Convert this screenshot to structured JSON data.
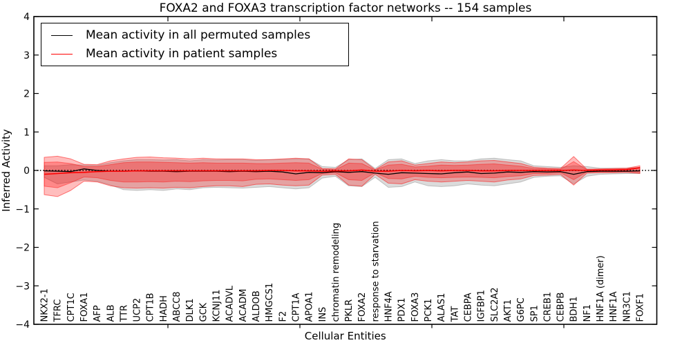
{
  "title": "FOXA2 and FOXA3 transcription factor networks -- 154 samples",
  "legend": {
    "entries": [
      {
        "label": "Mean activity in all permuted samples",
        "color": "#000000"
      },
      {
        "label": "Mean activity in patient samples",
        "color": "#ff0000"
      }
    ],
    "position": "upper left"
  },
  "chart_data": {
    "type": "line",
    "title": "FOXA2 and FOXA3 transcription factor networks -- 154 samples",
    "xlabel": "Cellular Entities",
    "ylabel": "Inferred Activity",
    "ylim": [
      -4,
      4
    ],
    "grid": false,
    "yticks": [
      {
        "value": 4,
        "label": "4"
      },
      {
        "value": 3,
        "label": "3"
      },
      {
        "value": 2,
        "label": "2"
      },
      {
        "value": 1,
        "label": "1"
      },
      {
        "value": 0,
        "label": "0"
      },
      {
        "value": -1,
        "label": "−1"
      },
      {
        "value": -2,
        "label": "−2"
      },
      {
        "value": -3,
        "label": "−3"
      },
      {
        "value": -4,
        "label": "−4"
      }
    ],
    "categories": [
      "NKX2-1",
      "TFRC",
      "CPT1C",
      "FOXA1",
      "AFP",
      "ALB",
      "TTR",
      "UCP2",
      "CPT1B",
      "HADH",
      "ABCC8",
      "DLK1",
      "GCK",
      "KCNJ11",
      "ACADVL",
      "ACADM",
      "ALDOB",
      "HMGCS1",
      "F2",
      "CPT1A",
      "APOA1",
      "INS",
      "chromatin remodeling",
      "PKLR",
      "FOXA2",
      "response to starvation",
      "HNF4A",
      "PDX1",
      "FOXA3",
      "PCK1",
      "ALAS1",
      "TAT",
      "CEBPA",
      "IGFBP1",
      "SLC2A2",
      "AKT1",
      "G6PC",
      "SP1",
      "CREB1",
      "CEBPB",
      "BDH1",
      "NF1",
      "HNF1A (dimer)",
      "HNF1A",
      "NR3C1",
      "FOXF1"
    ],
    "baseline": {
      "value": 0,
      "color": "#000000",
      "style": "dotted"
    },
    "series": [
      {
        "name": "Mean activity in all permuted samples",
        "color": "#000000",
        "style": "solid",
        "width": 1.3,
        "values": [
          -0.01,
          -0.02,
          -0.03,
          0.04,
          0.0,
          -0.02,
          -0.02,
          -0.01,
          -0.02,
          -0.02,
          -0.03,
          -0.02,
          -0.02,
          -0.02,
          -0.03,
          -0.02,
          -0.03,
          -0.02,
          -0.04,
          -0.09,
          -0.05,
          -0.06,
          -0.03,
          -0.05,
          -0.03,
          -0.07,
          -0.1,
          -0.06,
          -0.07,
          -0.08,
          -0.09,
          -0.06,
          -0.04,
          -0.08,
          -0.07,
          -0.04,
          -0.05,
          -0.03,
          -0.04,
          -0.03,
          -0.1,
          -0.03,
          -0.02,
          -0.02,
          -0.02,
          -0.01
        ]
      },
      {
        "name": "Mean activity in patient samples",
        "color": "#ff0000",
        "style": "solid",
        "width": 1.6,
        "values": [
          -0.1,
          -0.08,
          -0.06,
          -0.05,
          -0.03,
          -0.02,
          -0.02,
          -0.01,
          -0.01,
          -0.01,
          -0.01,
          -0.01,
          -0.01,
          -0.01,
          -0.01,
          -0.01,
          -0.01,
          0.0,
          0.0,
          -0.01,
          -0.01,
          -0.02,
          -0.01,
          -0.01,
          0.01,
          -0.02,
          -0.02,
          0.0,
          -0.01,
          0.0,
          -0.01,
          0.0,
          0.0,
          -0.01,
          -0.01,
          0.0,
          0.0,
          0.0,
          0.0,
          0.0,
          0.01,
          0.0,
          0.01,
          0.01,
          0.02,
          0.07
        ]
      }
    ],
    "bands": [
      {
        "name": "permuted-samples-range",
        "color": "#909090",
        "opacity": 0.32,
        "edge_opacity": 0.5,
        "upper": [
          0.12,
          0.12,
          0.15,
          0.14,
          0.13,
          0.2,
          0.25,
          0.28,
          0.28,
          0.27,
          0.28,
          0.25,
          0.28,
          0.27,
          0.28,
          0.28,
          0.26,
          0.28,
          0.28,
          0.3,
          0.3,
          0.1,
          0.08,
          0.28,
          0.3,
          0.05,
          0.28,
          0.3,
          0.18,
          0.25,
          0.28,
          0.25,
          0.25,
          0.3,
          0.32,
          0.28,
          0.25,
          0.12,
          0.1,
          0.08,
          0.12,
          0.1,
          0.06,
          0.06,
          0.06,
          0.08
        ],
        "lower": [
          -0.18,
          -0.35,
          -0.3,
          -0.25,
          -0.28,
          -0.38,
          -0.5,
          -0.52,
          -0.5,
          -0.52,
          -0.48,
          -0.5,
          -0.45,
          -0.44,
          -0.45,
          -0.46,
          -0.44,
          -0.42,
          -0.45,
          -0.48,
          -0.45,
          -0.2,
          -0.15,
          -0.4,
          -0.42,
          -0.18,
          -0.44,
          -0.42,
          -0.3,
          -0.4,
          -0.42,
          -0.4,
          -0.35,
          -0.38,
          -0.4,
          -0.35,
          -0.3,
          -0.18,
          -0.15,
          -0.14,
          -0.35,
          -0.15,
          -0.1,
          -0.09,
          -0.08,
          -0.08
        ]
      },
      {
        "name": "patient-samples-range-outer",
        "color": "#ff0000",
        "opacity": 0.26,
        "edge_opacity": 0.5,
        "upper": [
          0.34,
          0.37,
          0.3,
          0.16,
          0.15,
          0.25,
          0.3,
          0.34,
          0.35,
          0.33,
          0.32,
          0.3,
          0.32,
          0.3,
          0.3,
          0.3,
          0.28,
          0.28,
          0.3,
          0.32,
          0.3,
          0.05,
          0.04,
          0.3,
          0.28,
          0.02,
          0.22,
          0.25,
          0.14,
          0.18,
          0.22,
          0.2,
          0.22,
          0.25,
          0.26,
          0.22,
          0.18,
          0.08,
          0.06,
          0.05,
          0.36,
          0.03,
          0.04,
          0.05,
          0.06,
          0.12
        ],
        "lower": [
          -0.63,
          -0.68,
          -0.52,
          -0.28,
          -0.3,
          -0.4,
          -0.45,
          -0.46,
          -0.45,
          -0.46,
          -0.44,
          -0.45,
          -0.42,
          -0.4,
          -0.4,
          -0.42,
          -0.36,
          -0.35,
          -0.38,
          -0.4,
          -0.38,
          -0.12,
          -0.1,
          -0.38,
          -0.41,
          -0.1,
          -0.33,
          -0.35,
          -0.24,
          -0.28,
          -0.3,
          -0.28,
          -0.26,
          -0.28,
          -0.3,
          -0.25,
          -0.22,
          -0.13,
          -0.12,
          -0.1,
          -0.38,
          -0.07,
          -0.06,
          -0.06,
          -0.05,
          -0.08
        ]
      },
      {
        "name": "patient-samples-range-inner",
        "color": "#ff0000",
        "opacity": 0.28,
        "edge_opacity": 0.4,
        "upper": [
          0.21,
          0.22,
          0.18,
          0.1,
          0.1,
          0.15,
          0.2,
          0.22,
          0.22,
          0.21,
          0.2,
          0.19,
          0.2,
          0.19,
          0.19,
          0.19,
          0.18,
          0.18,
          0.19,
          0.2,
          0.19,
          0.03,
          0.02,
          0.19,
          0.18,
          0.01,
          0.14,
          0.16,
          0.09,
          0.11,
          0.14,
          0.13,
          0.14,
          0.16,
          0.17,
          0.14,
          0.11,
          0.05,
          0.04,
          0.03,
          0.23,
          0.02,
          0.02,
          0.03,
          0.04,
          0.08
        ],
        "lower": [
          -0.41,
          -0.45,
          -0.32,
          -0.17,
          -0.19,
          -0.26,
          -0.3,
          -0.3,
          -0.29,
          -0.3,
          -0.28,
          -0.29,
          -0.27,
          -0.26,
          -0.26,
          -0.27,
          -0.23,
          -0.22,
          -0.24,
          -0.26,
          -0.24,
          -0.08,
          -0.06,
          -0.24,
          -0.26,
          -0.06,
          -0.21,
          -0.22,
          -0.15,
          -0.18,
          -0.19,
          -0.18,
          -0.17,
          -0.18,
          -0.19,
          -0.16,
          -0.14,
          -0.08,
          -0.08,
          -0.06,
          -0.24,
          -0.04,
          -0.04,
          -0.04,
          -0.03,
          -0.05
        ]
      }
    ]
  }
}
